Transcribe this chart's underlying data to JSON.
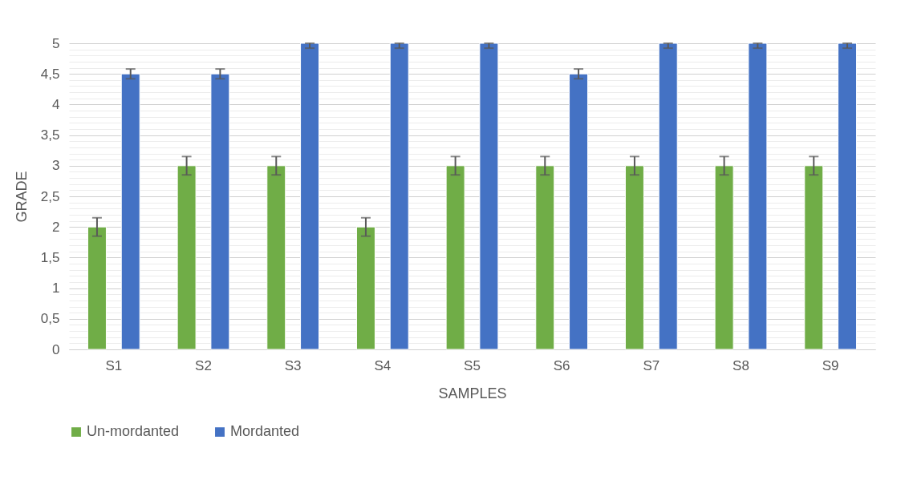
{
  "chart_data": {
    "type": "bar",
    "xlabel": "SAMPLES",
    "ylabel": "GRADE",
    "categories": [
      "S1",
      "S2",
      "S3",
      "S4",
      "S5",
      "S6",
      "S7",
      "S8",
      "S9"
    ],
    "series": [
      {
        "name": "Un-mordanted",
        "color": "#70ad47",
        "values": [
          2,
          3,
          3,
          2,
          3,
          3,
          3,
          3,
          3
        ],
        "errors": [
          0.15,
          0.15,
          0.15,
          0.15,
          0.15,
          0.15,
          0.15,
          0.15,
          0.15
        ]
      },
      {
        "name": "Mordanted",
        "color": "#4472c4",
        "values": [
          4.5,
          4.5,
          5,
          5,
          5,
          4.5,
          5,
          5,
          5
        ],
        "errors": [
          0.08,
          0.08,
          [
            4.92,
            5
          ],
          [
            4.92,
            5
          ],
          [
            4.92,
            5
          ],
          0.08,
          [
            4.92,
            5
          ],
          [
            4.92,
            5
          ],
          [
            4.92,
            5
          ]
        ]
      }
    ],
    "ylim": [
      0,
      5
    ],
    "yticks": [
      0,
      {
        "value": 0.1,
        "label": null
      },
      {
        "value": 0.2,
        "label": null
      },
      {
        "value": 0.3,
        "label": null
      },
      {
        "value": 0.4,
        "label": null
      },
      {
        "value": 0.5,
        "label": "0,5"
      },
      {
        "value": 0.6,
        "label": null
      },
      {
        "value": 0.7,
        "label": null
      },
      {
        "value": 0.8,
        "label": null
      },
      {
        "value": 0.9,
        "label": null
      },
      1,
      {
        "value": 1.1,
        "label": null
      },
      {
        "value": 1.2,
        "label": null
      },
      {
        "value": 1.3,
        "label": null
      },
      {
        "value": 1.4,
        "label": null
      },
      {
        "value": 1.5,
        "label": "1,5"
      },
      {
        "value": 1.6,
        "label": null
      },
      {
        "value": 1.7,
        "label": null
      },
      {
        "value": 1.8,
        "label": null
      },
      {
        "value": 1.9,
        "label": null
      },
      2,
      {
        "value": 2.1,
        "label": null
      },
      {
        "value": 2.2,
        "label": null
      },
      {
        "value": 2.3,
        "label": null
      },
      {
        "value": 2.4,
        "label": null
      },
      {
        "value": 2.5,
        "label": "2,5"
      },
      {
        "value": 2.6,
        "label": null
      },
      {
        "value": 2.7,
        "label": null
      },
      {
        "value": 2.8,
        "label": null
      },
      {
        "value": 2.9,
        "label": null
      },
      3,
      {
        "value": 3.1,
        "label": null
      },
      {
        "value": 3.2,
        "label": null
      },
      {
        "value": 3.3,
        "label": null
      },
      {
        "value": 3.4,
        "label": null
      },
      {
        "value": 3.5,
        "label": "3,5"
      },
      {
        "value": 3.6,
        "label": null
      },
      {
        "value": 3.7,
        "label": null
      },
      {
        "value": 3.8,
        "label": null
      },
      {
        "value": 3.9,
        "label": null
      },
      4,
      {
        "value": 4.1,
        "label": null
      },
      {
        "value": 4.2,
        "label": null
      },
      {
        "value": 4.3,
        "label": null
      },
      {
        "value": 4.4,
        "label": null
      },
      {
        "value": 4.5,
        "label": "4,5"
      },
      {
        "value": 4.6,
        "label": null
      },
      {
        "value": 4.7,
        "label": null
      },
      {
        "value": 4.8,
        "label": null
      },
      {
        "value": 4.9,
        "label": null
      },
      5
    ],
    "grid": "y",
    "legend": "bottom"
  }
}
